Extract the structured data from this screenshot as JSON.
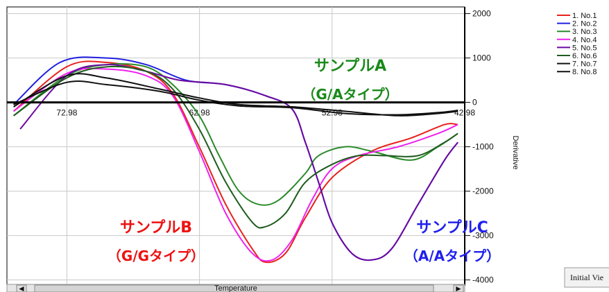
{
  "chart_data": {
    "type": "line",
    "xlabel": "Temperature",
    "ylabel": "Derivative",
    "xlim": [
      77.5,
      42.98
    ],
    "ylim": [
      -4100,
      2150
    ],
    "x_ticks": [
      72.98,
      62.98,
      52.98,
      42.98
    ],
    "x_tick_labels": [
      "72.98",
      "62.98",
      "52.98",
      "42.98"
    ],
    "y_ticks": [
      2000,
      1000,
      0,
      -1000,
      -2000,
      -3000,
      -4000
    ],
    "y_tick_labels": [
      "2000",
      "1000",
      "0",
      "-1000",
      "-2000",
      "-3000",
      "-4000"
    ],
    "grid": true,
    "legend": "right",
    "series": [
      {
        "name": "1. No.1",
        "color": "#e8201c",
        "x": [
          77.0,
          73.0,
          70.0,
          67.0,
          65.0,
          63.0,
          61.0,
          59.0,
          58.0,
          56.5,
          55.0,
          53.0,
          50.0,
          47.0,
          44.5,
          43.5
        ],
        "y": [
          -200,
          800,
          900,
          700,
          200,
          -1000,
          -2300,
          -3300,
          -3600,
          -3400,
          -2600,
          -1700,
          -1100,
          -800,
          -500,
          -500
        ]
      },
      {
        "name": "2. No.2",
        "color": "#2020e0",
        "x": [
          77.0,
          73.5,
          70.0,
          67.0,
          64.0,
          61.0,
          58.0,
          56.0,
          55.0,
          54.0,
          53.0,
          51.5,
          50.0,
          48.5,
          46.5,
          44.5,
          43.5
        ],
        "y": [
          -50,
          900,
          1000,
          850,
          500,
          400,
          150,
          -150,
          -900,
          -1800,
          -2700,
          -3400,
          -3550,
          -3300,
          -2300,
          -1300,
          -900
        ]
      },
      {
        "name": "3. No.3",
        "color": "#2a8a2a",
        "x": [
          77.0,
          73.0,
          70.0,
          67.0,
          65.0,
          63.0,
          61.5,
          60.0,
          58.5,
          57.0,
          55.0,
          54.0,
          52.0,
          50.0,
          47.0,
          45.0,
          43.5
        ],
        "y": [
          -300,
          600,
          850,
          800,
          400,
          -300,
          -1200,
          -2000,
          -2300,
          -2200,
          -1600,
          -1200,
          -1000,
          -1100,
          -1300,
          -1000,
          -700
        ]
      },
      {
        "name": "4. No.4",
        "color": "#ee22ee",
        "x": [
          77.0,
          73.0,
          70.0,
          67.0,
          65.0,
          63.0,
          61.0,
          59.0,
          57.5,
          56.0,
          54.5,
          53.0,
          51.0,
          48.0,
          45.0,
          43.5
        ],
        "y": [
          -200,
          650,
          750,
          600,
          150,
          -1100,
          -2500,
          -3400,
          -3550,
          -3100,
          -2200,
          -1500,
          -1200,
          -1000,
          -700,
          -500
        ]
      },
      {
        "name": "5. No.5",
        "color": "#6a0aa0",
        "x": [
          76.5,
          73.0,
          70.0,
          67.0,
          64.5,
          61.0,
          58.0,
          56.0,
          55.0,
          54.0,
          53.0,
          51.5,
          50.0,
          48.5,
          46.5,
          44.5,
          43.5
        ],
        "y": [
          -600,
          600,
          850,
          700,
          500,
          400,
          150,
          -150,
          -900,
          -1800,
          -2700,
          -3400,
          -3550,
          -3300,
          -2300,
          -1300,
          -900
        ]
      },
      {
        "name": "6. No.6",
        "color": "#1e5c1e",
        "x": [
          77.0,
          73.0,
          70.0,
          67.0,
          65.0,
          63.0,
          61.0,
          59.0,
          58.0,
          56.5,
          55.0,
          53.0,
          51.0,
          49.0,
          46.5,
          44.5,
          43.5
        ],
        "y": [
          -300,
          550,
          800,
          700,
          300,
          -600,
          -1800,
          -2700,
          -2800,
          -2500,
          -1800,
          -1400,
          -1200,
          -1200,
          -1200,
          -900,
          -700
        ]
      },
      {
        "name": "7. No.7",
        "color": "#101010",
        "x": [
          77.0,
          73.0,
          70.0,
          66.0,
          63.0,
          60.0,
          56.0,
          52.0,
          48.0,
          45.0,
          43.5
        ],
        "y": [
          -100,
          600,
          550,
          300,
          100,
          -50,
          -100,
          -200,
          -300,
          -250,
          -200
        ]
      },
      {
        "name": "8. No.8",
        "color": "#101010",
        "x": [
          77.0,
          73.0,
          70.0,
          66.0,
          63.0,
          60.0,
          56.0,
          52.0,
          48.0,
          45.0,
          43.5
        ],
        "y": [
          -50,
          450,
          400,
          250,
          50,
          -80,
          -120,
          -250,
          -280,
          -230,
          -180
        ]
      }
    ],
    "annotations": [
      {
        "lines": [
          "サンプルA",
          "（G/Aタイプ）"
        ],
        "color": "#1a8a1a"
      },
      {
        "lines": [
          "サンプルB",
          "（G/Gタイプ）"
        ],
        "color": "#ee1111"
      },
      {
        "lines": [
          "サンプルC",
          "（A/Aタイプ）"
        ],
        "color": "#2020ee"
      }
    ]
  },
  "controls": {
    "initial_view_label": "Initial Vie",
    "scroll_left_glyph": "◄",
    "scroll_right_glyph": "►"
  }
}
